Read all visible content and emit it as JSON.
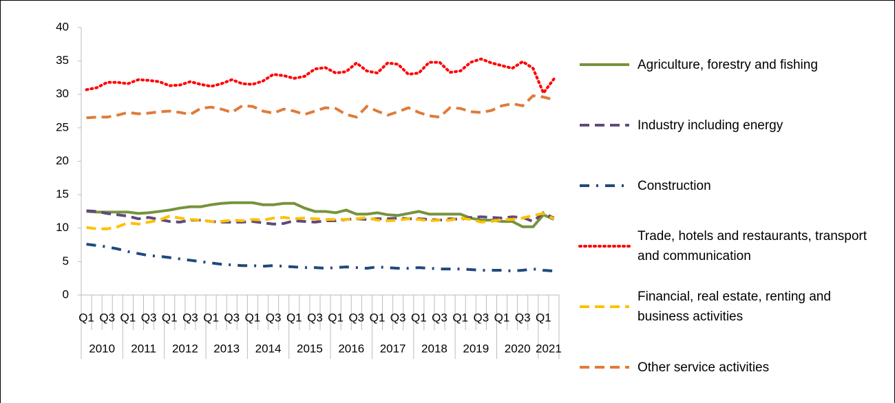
{
  "chart_data": {
    "type": "line",
    "categories": [
      "Q1",
      null,
      "Q3",
      null,
      "Q1",
      null,
      "Q3",
      null,
      "Q1",
      null,
      "Q3",
      null,
      "Q1",
      null,
      "Q3",
      null,
      "Q1",
      null,
      "Q3",
      null,
      "Q1",
      null,
      "Q3",
      null,
      "Q1",
      null,
      "Q3",
      null,
      "Q1",
      null,
      "Q3",
      null,
      "Q1",
      null,
      "Q3",
      null,
      "Q1",
      null,
      "Q3",
      null,
      "Q1",
      null,
      "Q3",
      null,
      "Q1",
      null
    ],
    "years": [
      "2010",
      "2011",
      "2012",
      "2013",
      "2014",
      "2015",
      "2016",
      "2017",
      "2018",
      "2019",
      "2020",
      "2021"
    ],
    "ylim": [
      0,
      40
    ],
    "yticks": [
      0,
      5,
      10,
      15,
      20,
      25,
      30,
      35,
      40
    ],
    "legend": "right",
    "series": [
      {
        "name": "Agriculture, forestry and fishing",
        "color": "#76933c",
        "style": "solid",
        "values": [
          12.5,
          12.4,
          12.4,
          12.4,
          12.4,
          12.2,
          12.3,
          12.5,
          12.7,
          13.0,
          13.2,
          13.2,
          13.5,
          13.7,
          13.8,
          13.8,
          13.8,
          13.5,
          13.5,
          13.7,
          13.7,
          13.0,
          12.5,
          12.5,
          12.3,
          12.7,
          12.1,
          12.1,
          12.3,
          12.0,
          11.9,
          12.2,
          12.5,
          12.1,
          12.1,
          12.1,
          12.1,
          11.5,
          11.2,
          11.2,
          11.0,
          11.0,
          10.2,
          10.2,
          12.0,
          11.3
        ]
      },
      {
        "name": "Industry including energy",
        "color": "#604a7b",
        "style": "dash",
        "values": [
          12.6,
          12.5,
          12.2,
          12.0,
          11.8,
          11.4,
          11.6,
          11.3,
          11.0,
          10.9,
          11.2,
          11.2,
          11.0,
          10.9,
          10.9,
          10.9,
          11.0,
          10.8,
          10.6,
          10.7,
          11.1,
          11.0,
          10.9,
          11.1,
          11.1,
          11.3,
          11.4,
          11.3,
          11.4,
          11.4,
          11.5,
          11.4,
          11.4,
          11.3,
          11.2,
          11.4,
          11.3,
          11.6,
          11.7,
          11.6,
          11.5,
          11.7,
          11.6,
          11.0,
          12.3,
          11.5
        ]
      },
      {
        "name": "Construction",
        "color": "#1f497d",
        "style": "dashdot",
        "values": [
          7.6,
          7.4,
          7.2,
          6.9,
          6.5,
          6.2,
          5.9,
          5.8,
          5.6,
          5.4,
          5.2,
          5.0,
          4.8,
          4.6,
          4.5,
          4.4,
          4.4,
          4.3,
          4.4,
          4.3,
          4.2,
          4.1,
          4.1,
          4.0,
          4.1,
          4.2,
          4.1,
          4.0,
          4.2,
          4.1,
          4.0,
          4.0,
          4.1,
          4.0,
          3.9,
          3.9,
          3.9,
          3.8,
          3.7,
          3.7,
          3.7,
          3.6,
          3.7,
          3.9,
          3.7,
          3.6
        ]
      },
      {
        "name": "Trade, hotels and restaurants, transport and communication",
        "color": "#ff0000",
        "style": "dot",
        "values": [
          30.7,
          31.0,
          31.8,
          31.8,
          31.6,
          32.2,
          32.1,
          31.9,
          31.3,
          31.4,
          31.9,
          31.5,
          31.2,
          31.6,
          32.2,
          31.6,
          31.5,
          32.0,
          33.0,
          32.8,
          32.4,
          32.7,
          33.8,
          34.0,
          33.2,
          33.4,
          34.7,
          33.5,
          33.2,
          34.7,
          34.5,
          33.0,
          33.2,
          34.8,
          34.8,
          33.3,
          33.5,
          34.8,
          35.3,
          34.7,
          34.3,
          33.9,
          34.9,
          33.9,
          30.2,
          32.3
        ]
      },
      {
        "name": "Financial, real estate, renting and business activities",
        "color": "#ffc000",
        "style": "dash",
        "values": [
          10.1,
          9.9,
          9.9,
          10.2,
          10.8,
          10.6,
          10.9,
          11.2,
          11.8,
          11.5,
          11.3,
          11.2,
          11.0,
          11.0,
          11.2,
          11.1,
          11.3,
          11.2,
          11.5,
          11.6,
          11.4,
          11.5,
          11.4,
          11.3,
          11.3,
          11.3,
          11.4,
          11.6,
          11.2,
          11.1,
          11.2,
          11.4,
          11.3,
          11.1,
          11.2,
          11.2,
          11.5,
          11.3,
          10.9,
          11.0,
          11.3,
          11.3,
          11.5,
          11.9,
          12.2,
          11.4
        ]
      },
      {
        "name": "Other service activities",
        "color": "#e07b39",
        "style": "dash",
        "values": [
          26.5,
          26.6,
          26.6,
          26.9,
          27.3,
          27.1,
          27.2,
          27.4,
          27.5,
          27.3,
          27.0,
          27.9,
          28.1,
          27.8,
          27.3,
          28.3,
          28.2,
          27.5,
          27.2,
          27.8,
          27.5,
          27.0,
          27.5,
          28.0,
          27.9,
          27.0,
          26.6,
          28.2,
          27.5,
          26.9,
          27.4,
          28.0,
          27.3,
          26.8,
          26.6,
          28.0,
          27.9,
          27.4,
          27.3,
          27.6,
          28.3,
          28.6,
          28.3,
          29.8,
          29.6,
          29.2
        ]
      }
    ]
  }
}
